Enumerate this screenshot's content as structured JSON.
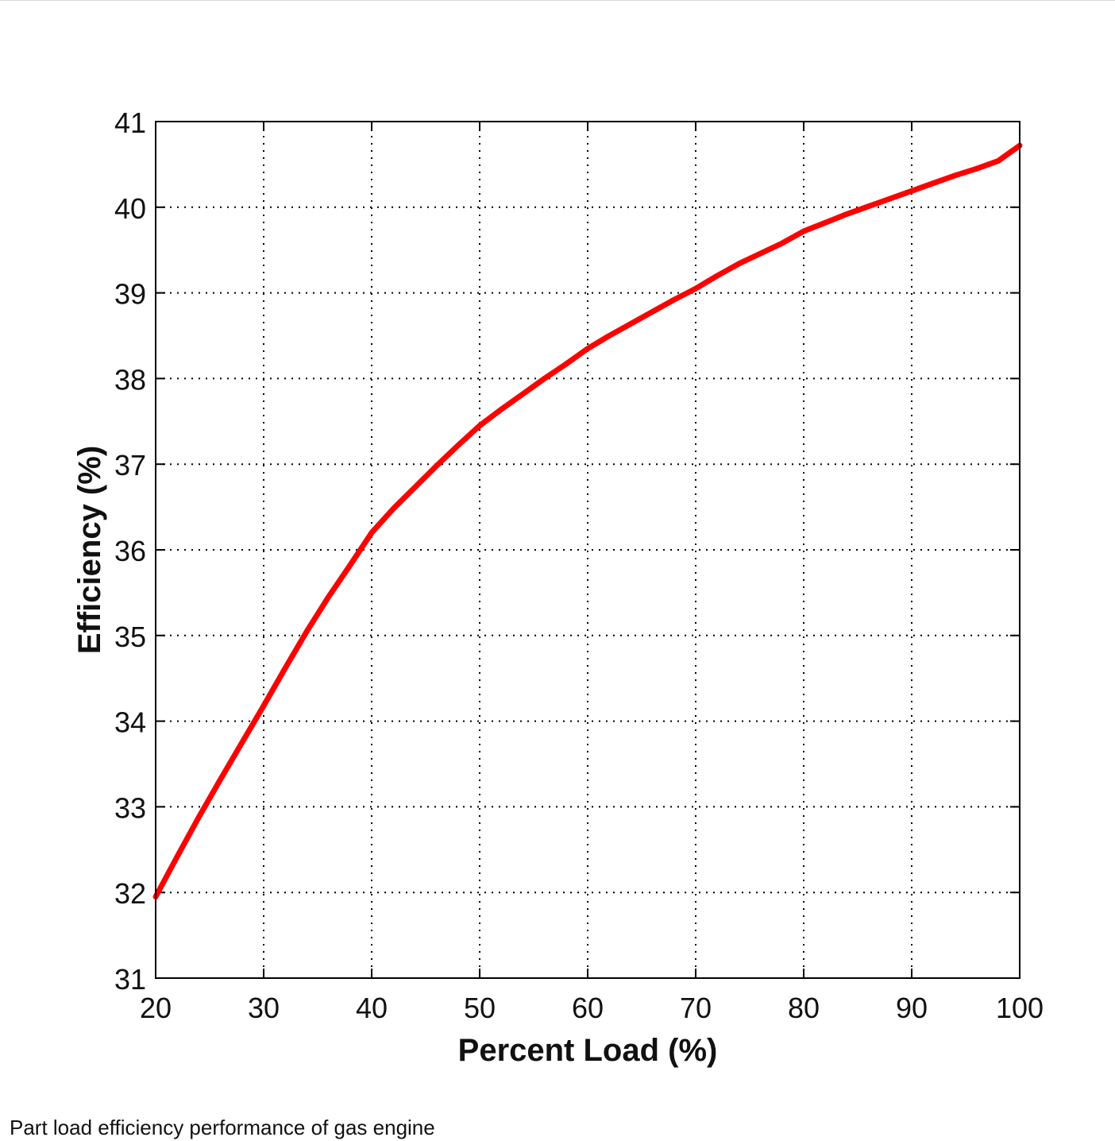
{
  "caption": "Part load efficiency performance of gas engine",
  "chart_data": {
    "type": "line",
    "title": "",
    "xlabel": "Percent Load (%)",
    "ylabel": "Efficiency (%)",
    "xlim": [
      20,
      100
    ],
    "ylim": [
      31,
      41
    ],
    "xticks": [
      20,
      30,
      40,
      50,
      60,
      70,
      80,
      90,
      100
    ],
    "yticks": [
      31,
      32,
      33,
      34,
      35,
      36,
      37,
      38,
      39,
      40,
      41
    ],
    "grid": true,
    "grid_style": "dotted",
    "line_color": "#ff0000",
    "series": [
      {
        "x": [
          20,
          22,
          24,
          26,
          28,
          30,
          32,
          34,
          36,
          38,
          40,
          42,
          44,
          46,
          48,
          50,
          52,
          54,
          56,
          58,
          60,
          62,
          64,
          66,
          68,
          70,
          72,
          74,
          76,
          78,
          80,
          82,
          84,
          86,
          88,
          90,
          92,
          94,
          96,
          98,
          100
        ],
        "y": [
          31.95,
          32.42,
          32.88,
          33.32,
          33.75,
          34.18,
          34.62,
          35.05,
          35.45,
          35.82,
          36.2,
          36.48,
          36.73,
          36.98,
          37.22,
          37.45,
          37.64,
          37.82,
          38.0,
          38.17,
          38.35,
          38.5,
          38.64,
          38.78,
          38.92,
          39.05,
          39.2,
          39.34,
          39.46,
          39.58,
          39.72,
          39.82,
          39.92,
          40.01,
          40.1,
          40.19,
          40.28,
          40.37,
          40.45,
          40.54,
          40.72
        ]
      }
    ]
  }
}
